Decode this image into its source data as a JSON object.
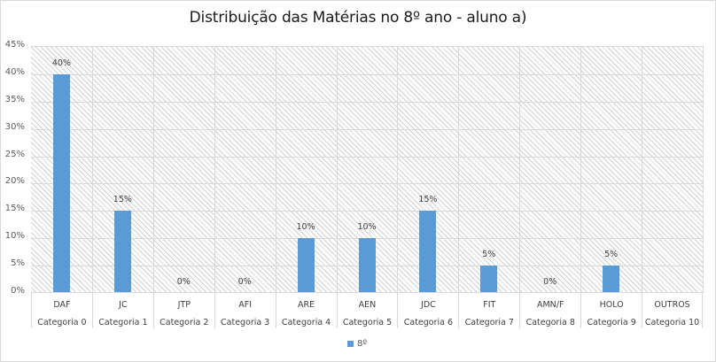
{
  "chart_data": {
    "type": "bar",
    "title": "Distribuição das Matérias no 8º ano - aluno a)",
    "xlabel": "",
    "ylabel": "",
    "ylim": [
      0,
      45
    ],
    "yticks": [
      "0%",
      "5%",
      "10%",
      "15%",
      "20%",
      "25%",
      "30%",
      "35%",
      "40%",
      "45%"
    ],
    "grid": true,
    "legend_position": "bottom",
    "categories": [
      "DAF",
      "JC",
      "JTP",
      "AFI",
      "ARE",
      "AEN",
      "JDC",
      "FIT",
      "AMN/F",
      "HOLO",
      "OUTROS"
    ],
    "category_groups": [
      "Categoria 0",
      "Categoria 1",
      "Categoria 2",
      "Categoria 3",
      "Categoria 4",
      "Categoria 5",
      "Categoria 6",
      "Categoria 7",
      "Categoria 8",
      "Categoria 9",
      "Categoria 10"
    ],
    "series": [
      {
        "name": "8º",
        "color": "#5b9bd5",
        "values": [
          40,
          15,
          0,
          0,
          10,
          10,
          15,
          5,
          0,
          5,
          null
        ],
        "data_labels": [
          "40%",
          "15%",
          "0%",
          "0%",
          "10%",
          "10%",
          "15%",
          "5%",
          "0%",
          "5%",
          ""
        ]
      }
    ]
  }
}
